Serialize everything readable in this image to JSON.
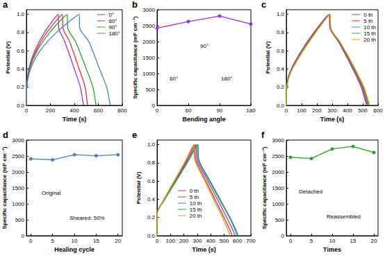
{
  "chart_data": [
    {
      "type": "line",
      "title": "a",
      "xlabel": "Time (s)",
      "ylabel": "Potential (V)",
      "xlim": [
        0,
        800
      ],
      "xticks": [
        0,
        200,
        400,
        600,
        800
      ],
      "ylim": [
        0,
        1.05
      ],
      "yticks": [
        {
          "value": 0,
          "label": "0.0"
        },
        0.2,
        0.4,
        0.6,
        0.8,
        {
          "value": 1,
          "label": "1.0"
        }
      ],
      "grid": false,
      "legend": "upper right",
      "marker": "none",
      "line_style": "solid",
      "series": [
        {
          "name": "0°",
          "color": "#9b30d9",
          "x": [
            0,
            3,
            20,
            70,
            150,
            265,
            270,
            320,
            400,
            450,
            470,
            478
          ],
          "values": [
            0,
            0.2,
            0.4,
            0.6,
            0.8,
            1.0,
            0.85,
            0.7,
            0.4,
            0.2,
            0.05,
            0
          ]
        },
        {
          "name": "60°",
          "color": "#e8312f",
          "x": [
            0,
            3,
            25,
            80,
            170,
            300,
            305,
            360,
            440,
            490,
            505,
            512
          ],
          "values": [
            0,
            0.2,
            0.4,
            0.6,
            0.8,
            1.0,
            0.85,
            0.7,
            0.4,
            0.2,
            0.05,
            0
          ]
        },
        {
          "name": "90°",
          "color": "#2ca02c",
          "x": [
            0,
            3,
            28,
            90,
            195,
            340,
            345,
            410,
            500,
            555,
            575,
            582
          ],
          "values": [
            0,
            0.2,
            0.4,
            0.6,
            0.8,
            1.0,
            0.85,
            0.7,
            0.4,
            0.2,
            0.05,
            0
          ]
        },
        {
          "name": "180°",
          "color": "#4a7fc1",
          "x": [
            0,
            3,
            35,
            115,
            250,
            440,
            445,
            520,
            610,
            670,
            692,
            700
          ],
          "values": [
            0,
            0.2,
            0.4,
            0.6,
            0.8,
            1.0,
            0.85,
            0.7,
            0.4,
            0.2,
            0.05,
            0
          ]
        }
      ]
    },
    {
      "type": "line",
      "title": "b",
      "xlabel": "Bending angle",
      "ylabel": "Specific capacitance (mF cm⁻²)",
      "categories": [
        "0",
        "60",
        "90",
        "180"
      ],
      "values": [
        2420,
        2630,
        2800,
        2550
      ],
      "color": "#9b30d9",
      "ylim": [
        0,
        3000
      ],
      "yticks": [
        0,
        500,
        1000,
        1500,
        2000,
        2500,
        3000
      ],
      "grid": false,
      "marker": "circle",
      "line_style": "solid",
      "annotations": [
        "90°",
        "60°",
        "180°"
      ]
    },
    {
      "type": "line",
      "title": "c",
      "xlabel": "Time (s)",
      "ylabel": "Potential (V)",
      "xlim": [
        0,
        600
      ],
      "xticks": [
        0,
        100,
        200,
        300,
        400,
        500,
        600
      ],
      "ylim": [
        0,
        1.05
      ],
      "yticks": [
        {
          "value": 0,
          "label": "0.0"
        },
        0.2,
        0.4,
        0.6,
        0.8,
        {
          "value": 1,
          "label": "1.0"
        }
      ],
      "grid": false,
      "legend": "upper right",
      "marker": "none",
      "line_style": "solid",
      "series": [
        {
          "name": "0 th",
          "color": "#9b30d9",
          "x": [
            0,
            3,
            20,
            80,
            180,
            280,
            285,
            340,
            420,
            490,
            515,
            525
          ],
          "values": [
            0,
            0.2,
            0.35,
            0.55,
            0.8,
            1.0,
            0.85,
            0.7,
            0.45,
            0.2,
            0.06,
            0
          ]
        },
        {
          "name": "5 th",
          "color": "#e8312f",
          "x": [
            0,
            3,
            22,
            85,
            185,
            282,
            287,
            343,
            424,
            495,
            520,
            530
          ],
          "values": [
            0,
            0.2,
            0.35,
            0.55,
            0.8,
            1.0,
            0.85,
            0.7,
            0.45,
            0.2,
            0.06,
            0
          ]
        },
        {
          "name": "10 th",
          "color": "#4a7fc1",
          "x": [
            0,
            3,
            24,
            88,
            188,
            284,
            289,
            346,
            428,
            500,
            525,
            535
          ],
          "values": [
            0,
            0.2,
            0.35,
            0.55,
            0.8,
            1.0,
            0.85,
            0.7,
            0.45,
            0.2,
            0.06,
            0
          ]
        },
        {
          "name": "15 th",
          "color": "#2ca02c",
          "x": [
            0,
            3,
            25,
            90,
            190,
            285,
            290,
            348,
            431,
            504,
            530,
            540
          ],
          "values": [
            0,
            0.2,
            0.35,
            0.55,
            0.8,
            1.0,
            0.85,
            0.7,
            0.45,
            0.2,
            0.06,
            0
          ]
        },
        {
          "name": "20 th",
          "color": "#d4a017",
          "x": [
            0,
            3,
            26,
            92,
            192,
            286,
            291,
            350,
            434,
            508,
            535,
            545
          ],
          "values": [
            0,
            0.2,
            0.35,
            0.55,
            0.8,
            1.0,
            0.85,
            0.7,
            0.45,
            0.2,
            0.06,
            0
          ]
        }
      ]
    },
    {
      "type": "line",
      "title": "d",
      "xlabel": "Healing cycle",
      "ylabel": "Specific capacitance (mF cm⁻²)",
      "x": [
        0,
        5,
        10,
        15,
        20
      ],
      "values": [
        2410,
        2380,
        2540,
        2510,
        2540
      ],
      "color": "#4a7fc1",
      "xlim": [
        -1,
        21
      ],
      "xticks": [
        0,
        5,
        10,
        15,
        20
      ],
      "ylim": [
        0,
        3000
      ],
      "yticks": [
        0,
        500,
        1000,
        1500,
        2000,
        2500,
        3000
      ],
      "grid": false,
      "marker": "circle",
      "line_style": "solid",
      "annotations": [
        "Original",
        "Sheared: 50%"
      ]
    },
    {
      "type": "line",
      "title": "e",
      "xlabel": "Time (s)",
      "ylabel": "Potential (V)",
      "xlim": [
        0,
        700
      ],
      "xticks": [
        0,
        100,
        200,
        300,
        400,
        500,
        600,
        700
      ],
      "ylim": [
        0,
        1.05
      ],
      "yticks": [
        {
          "value": 0,
          "label": "0.0"
        },
        0.2,
        0.4,
        0.6,
        0.8,
        {
          "value": 1,
          "label": "1.0"
        }
      ],
      "grid": false,
      "legend": "center",
      "marker": "none",
      "line_style": "solid",
      "series": [
        {
          "name": "0 th",
          "color": "#9b30d9",
          "x": [
            0,
            2,
            55,
            135,
            215,
            290,
            295,
            380,
            450,
            520,
            570,
            585
          ],
          "values": [
            0,
            0.25,
            0.4,
            0.6,
            0.8,
            1.0,
            0.85,
            0.6,
            0.4,
            0.2,
            0.05,
            0
          ]
        },
        {
          "name": "5 th",
          "color": "#e8312f",
          "x": [
            0,
            2,
            53,
            130,
            208,
            280,
            285,
            365,
            432,
            500,
            548,
            560
          ],
          "values": [
            0,
            0.25,
            0.4,
            0.6,
            0.8,
            1.0,
            0.85,
            0.6,
            0.4,
            0.2,
            0.05,
            0
          ]
        },
        {
          "name": "10 th",
          "color": "#4a7fc1",
          "x": [
            0,
            2,
            58,
            142,
            225,
            305,
            310,
            397,
            470,
            545,
            592,
            605
          ],
          "values": [
            0,
            0.25,
            0.4,
            0.6,
            0.8,
            1.0,
            0.85,
            0.6,
            0.4,
            0.2,
            0.05,
            0
          ]
        },
        {
          "name": "15 th",
          "color": "#2ca02c",
          "x": [
            0,
            2,
            57,
            140,
            222,
            300,
            305,
            392,
            465,
            540,
            587,
            600
          ],
          "values": [
            0,
            0.25,
            0.4,
            0.6,
            0.8,
            1.0,
            0.85,
            0.6,
            0.4,
            0.2,
            0.05,
            0
          ]
        },
        {
          "name": "20 th",
          "color": "#d4a017",
          "x": [
            0,
            2,
            52,
            128,
            204,
            275,
            280,
            357,
            422,
            488,
            533,
            545
          ],
          "values": [
            0,
            0.25,
            0.4,
            0.6,
            0.8,
            1.0,
            0.85,
            0.6,
            0.4,
            0.2,
            0.05,
            0
          ]
        }
      ]
    },
    {
      "type": "line",
      "title": "f",
      "xlabel": "Times",
      "ylabel": "Specific capacitance (mF cm⁻²)",
      "x": [
        0,
        5,
        10,
        15,
        20
      ],
      "values": [
        2460,
        2420,
        2720,
        2800,
        2610
      ],
      "color": "#2ca02c",
      "xlim": [
        -1,
        21
      ],
      "xticks": [
        0,
        5,
        10,
        15,
        20
      ],
      "ylim": [
        0,
        3000
      ],
      "yticks": [
        0,
        500,
        1000,
        1500,
        2000,
        2500,
        3000
      ],
      "grid": false,
      "marker": "circle",
      "line_style": "solid",
      "annotations": [
        "Detached",
        "Reassembled"
      ]
    }
  ]
}
